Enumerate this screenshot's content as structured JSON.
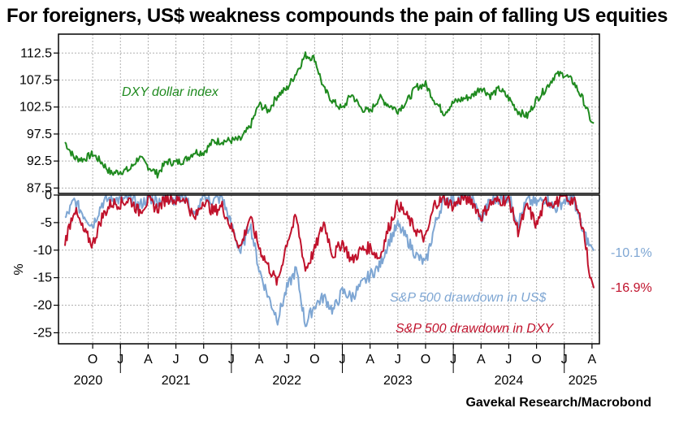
{
  "title": "For foreigners, US$ weakness compounds the pain of falling US equities",
  "credit": "Gavekal Research/Macrobond",
  "colors": {
    "dxy": "#1f8a1f",
    "usd": "#7ea6d3",
    "dxy_drawdown": "#c0122c",
    "grid": "#b0b0b0"
  },
  "chart_data": [
    {
      "type": "line",
      "ylim": [
        86.5,
        116
      ],
      "yticks": [
        "87.5",
        "92.5",
        "97.5",
        "102.5",
        "107.5",
        "112.5"
      ],
      "grid": true,
      "x": [
        "2020-07",
        "2020-08",
        "2020-09",
        "2020-10",
        "2020-11",
        "2020-12",
        "2021-01",
        "2021-02",
        "2021-03",
        "2021-04",
        "2021-05",
        "2021-06",
        "2021-07",
        "2021-08",
        "2021-09",
        "2021-10",
        "2021-11",
        "2021-12",
        "2022-01",
        "2022-02",
        "2022-03",
        "2022-04",
        "2022-05",
        "2022-06",
        "2022-07",
        "2022-08",
        "2022-09",
        "2022-10",
        "2022-11",
        "2022-12",
        "2023-01",
        "2023-02",
        "2023-03",
        "2023-04",
        "2023-05",
        "2023-06",
        "2023-07",
        "2023-08",
        "2023-09",
        "2023-10",
        "2023-11",
        "2023-12",
        "2024-01",
        "2024-02",
        "2024-03",
        "2024-04",
        "2024-05",
        "2024-06",
        "2024-07",
        "2024-08",
        "2024-09",
        "2024-10",
        "2024-11",
        "2024-12",
        "2025-01",
        "2025-02",
        "2025-03",
        "2025-04"
      ],
      "series": [
        {
          "name": "DXY dollar index",
          "color": "#1f8a1f",
          "values": [
            96,
            93.1,
            92.8,
            93.8,
            92.2,
            90.2,
            90.6,
            90.9,
            93.2,
            91.5,
            90.1,
            92.4,
            92.2,
            92.7,
            94.2,
            94.1,
            96.1,
            96.2,
            96.3,
            96.5,
            98.8,
            103.0,
            101.8,
            104.7,
            105.9,
            108.8,
            112.1,
            111.5,
            105.8,
            103.5,
            102.1,
            104.9,
            102.3,
            101.6,
            104.3,
            102.9,
            101.9,
            103.6,
            106.2,
            106.7,
            103.6,
            101.4,
            103.3,
            104.0,
            104.5,
            106.2,
            104.6,
            105.9,
            104.1,
            101.7,
            100.8,
            103.9,
            105.9,
            108.4,
            108.6,
            107.1,
            104.0,
            99.5
          ]
        }
      ]
    },
    {
      "type": "line",
      "ylabel": "%",
      "ylim": [
        -27,
        0
      ],
      "yticks": [
        "0",
        "-5",
        "-10",
        "-15",
        "-20",
        "-25"
      ],
      "grid": true,
      "xtick_labels": [
        "O",
        "J",
        "A",
        "J",
        "O",
        "J",
        "A",
        "J",
        "O",
        "J",
        "A",
        "J",
        "O",
        "J",
        "A",
        "J",
        "O",
        "J",
        "A"
      ],
      "year_labels": [
        "2020",
        "2021",
        "2022",
        "2023",
        "2024",
        "2025"
      ],
      "x": [
        "2020-07",
        "2020-08",
        "2020-09",
        "2020-10",
        "2020-11",
        "2020-12",
        "2021-01",
        "2021-02",
        "2021-03",
        "2021-04",
        "2021-05",
        "2021-06",
        "2021-07",
        "2021-08",
        "2021-09",
        "2021-10",
        "2021-11",
        "2021-12",
        "2022-01",
        "2022-02",
        "2022-03",
        "2022-04",
        "2022-05",
        "2022-06",
        "2022-07",
        "2022-08",
        "2022-09",
        "2022-10",
        "2022-11",
        "2022-12",
        "2023-01",
        "2023-02",
        "2023-03",
        "2023-04",
        "2023-05",
        "2023-06",
        "2023-07",
        "2023-08",
        "2023-09",
        "2023-10",
        "2023-11",
        "2023-12",
        "2024-01",
        "2024-02",
        "2024-03",
        "2024-04",
        "2024-05",
        "2024-06",
        "2024-07",
        "2024-08",
        "2024-09",
        "2024-10",
        "2024-11",
        "2024-12",
        "2025-01",
        "2025-02",
        "2025-03",
        "2025-04"
      ],
      "series": [
        {
          "name": "S&P 500 drawdown in US$",
          "color": "#7ea6d3",
          "end_label": "-10.1%",
          "values": [
            -4.5,
            -1.0,
            -3.5,
            -5.5,
            -1.5,
            -0.5,
            -1.0,
            -0.5,
            -2.0,
            -0.5,
            -1.0,
            -0.5,
            -0.8,
            -0.3,
            -4.0,
            -0.5,
            -1.0,
            -0.5,
            -5.5,
            -10.5,
            -5.0,
            -13.5,
            -18.5,
            -22.5,
            -17.0,
            -13.5,
            -23.5,
            -20.0,
            -18.5,
            -21.0,
            -17.5,
            -18.5,
            -16.5,
            -14.5,
            -13.0,
            -8.5,
            -5.5,
            -8.0,
            -11.0,
            -12.5,
            -5.5,
            -0.5,
            -1.0,
            -0.5,
            -0.3,
            -4.5,
            -1.0,
            -0.5,
            -0.3,
            -5.0,
            -1.0,
            -1.5,
            -0.5,
            -2.5,
            -1.0,
            -0.5,
            -6.5,
            -10.1
          ]
        },
        {
          "name": "S&P 500 drawdown in DXY",
          "color": "#c0122c",
          "end_label": "-16.9%",
          "values": [
            -8.5,
            -2.5,
            -6.5,
            -9.0,
            -4.0,
            -1.5,
            -1.5,
            -0.8,
            -3.0,
            -1.0,
            -2.5,
            -0.5,
            -1.0,
            -0.5,
            -4.5,
            -0.8,
            -3.0,
            -2.0,
            -6.0,
            -9.5,
            -4.0,
            -9.5,
            -13.0,
            -16.0,
            -8.5,
            -4.0,
            -13.5,
            -10.0,
            -5.0,
            -11.0,
            -8.5,
            -12.0,
            -10.0,
            -9.5,
            -11.5,
            -6.0,
            -1.5,
            -4.0,
            -6.5,
            -8.0,
            -1.5,
            -0.8,
            -2.0,
            -0.5,
            -1.0,
            -4.0,
            -1.5,
            -1.0,
            -0.8,
            -6.5,
            -2.0,
            -5.5,
            -1.0,
            -1.5,
            -0.5,
            -1.0,
            -5.5,
            -16.9
          ]
        }
      ]
    }
  ]
}
